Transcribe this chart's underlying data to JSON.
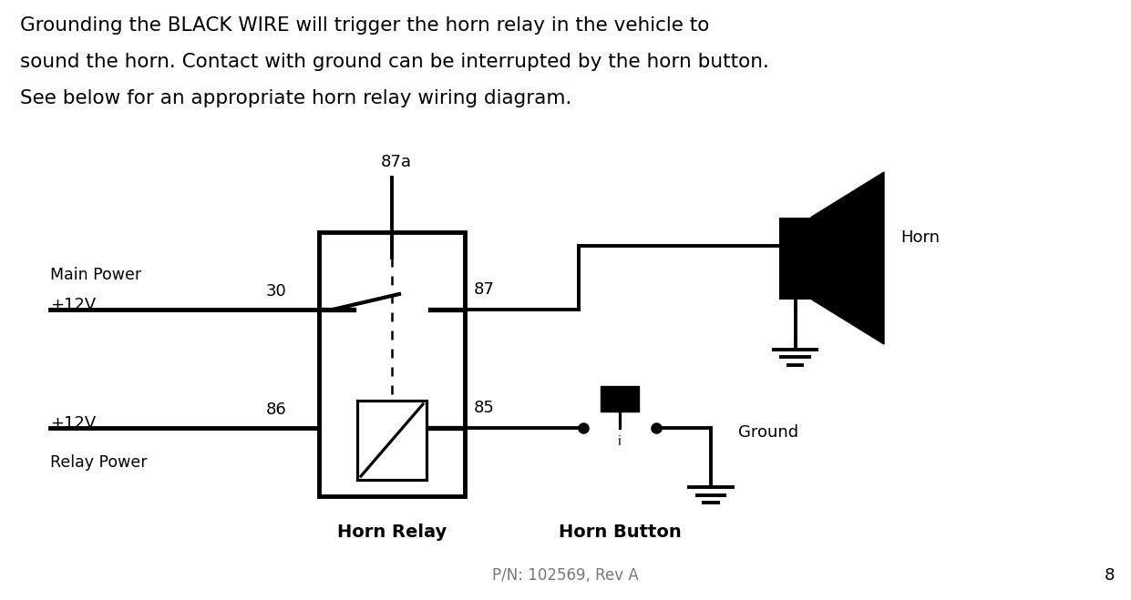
{
  "bg_color": "#ffffff",
  "text_color": "#000000",
  "line_color": "#000000",
  "header_text": [
    "Grounding the BLACK WIRE will trigger the horn relay in the vehicle to",
    "sound the horn. Contact with ground can be interrupted by the horn button.",
    "See below for an appropriate horn relay wiring diagram."
  ],
  "footer_text": "P/N: 102569, Rev A",
  "page_number": "8",
  "labels": {
    "main_power": "Main Power",
    "relay_power": "Relay Power",
    "plus12v_top": "+12V",
    "plus12v_bot": "+12V",
    "pin30": "30",
    "pin87a": "87a",
    "pin87": "87",
    "pin86": "86",
    "pin85": "85",
    "horn_relay": "Horn Relay",
    "horn_button": "Horn Button",
    "horn": "Horn",
    "ground": "Ground"
  }
}
